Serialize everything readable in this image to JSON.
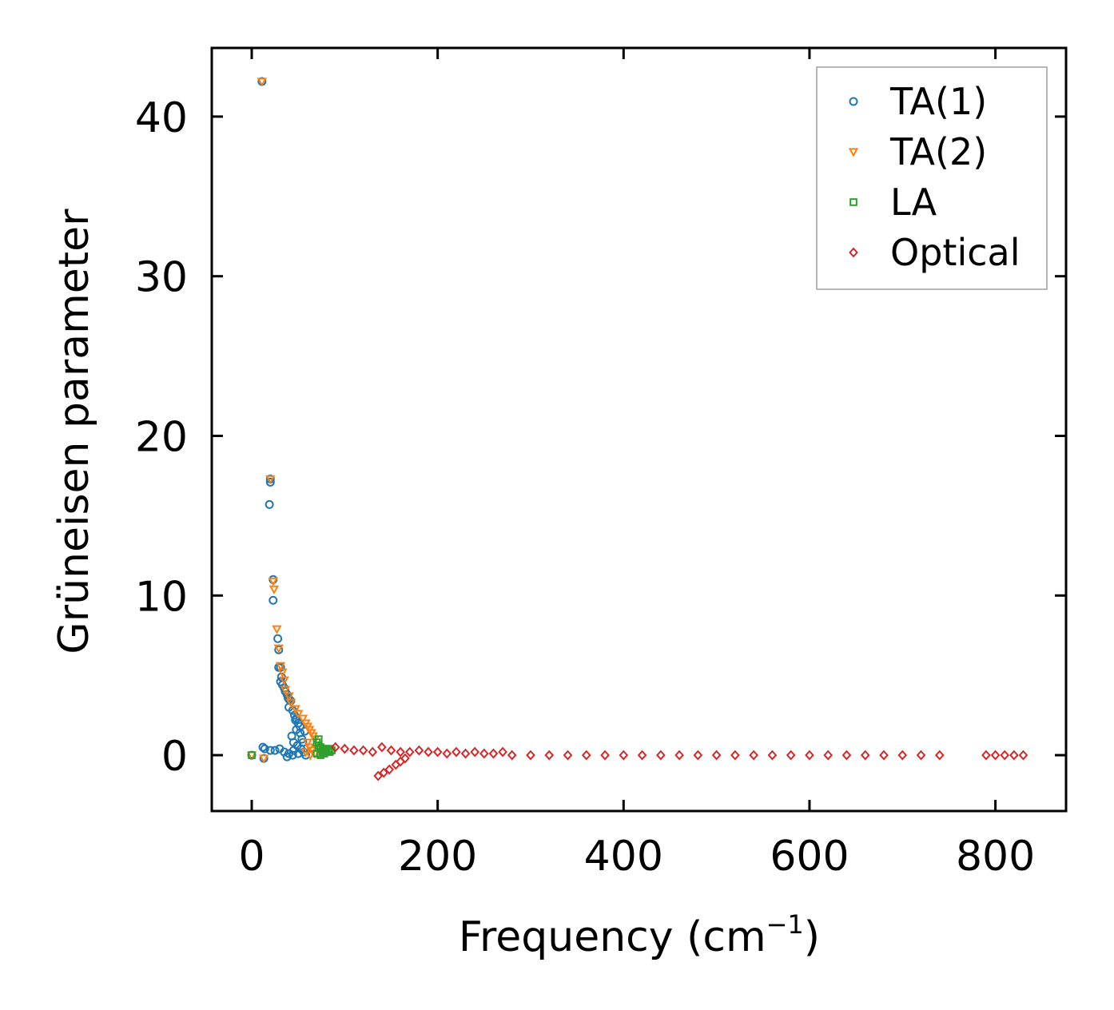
{
  "chart_data": {
    "type": "scatter",
    "title": "",
    "xlabel": "Frequency (cm",
    "xlabel_sup": "−1",
    "xlabel_end": ")",
    "ylabel": "Grüneisen parameter",
    "xlim": [
      -43,
      876
    ],
    "ylim": [
      -3.5,
      44.3
    ],
    "xticks": [
      0,
      200,
      400,
      600,
      800
    ],
    "yticks": [
      0,
      10,
      20,
      30,
      40
    ],
    "xtick_labels": [
      "0",
      "200",
      "400",
      "600",
      "800"
    ],
    "ytick_labels": [
      "0",
      "10",
      "20",
      "30",
      "40"
    ],
    "legend_position": "top-right",
    "series": [
      {
        "name": "TA(1)",
        "marker": "circle",
        "color": "#1f77b4",
        "points": [
          [
            0,
            0
          ],
          [
            11,
            42.2
          ],
          [
            20,
            17.3
          ],
          [
            20,
            17.1
          ],
          [
            19,
            15.7
          ],
          [
            23,
            11
          ],
          [
            23,
            9.7
          ],
          [
            28,
            7.3
          ],
          [
            29,
            6.6
          ],
          [
            29,
            5.5
          ],
          [
            31,
            5.5
          ],
          [
            32,
            4.9
          ],
          [
            31,
            4.6
          ],
          [
            33,
            4.4
          ],
          [
            35,
            4.2
          ],
          [
            36,
            4.0
          ],
          [
            38,
            3.8
          ],
          [
            39,
            3.6
          ],
          [
            40,
            3.5
          ],
          [
            42,
            3.4
          ],
          [
            40,
            3.0
          ],
          [
            44,
            2.8
          ],
          [
            46,
            2.5
          ],
          [
            47,
            2.2
          ],
          [
            50,
            2.0
          ],
          [
            48,
            1.6
          ],
          [
            52,
            1.4
          ],
          [
            54,
            1.0
          ],
          [
            45,
            0.8
          ],
          [
            49,
            0.6
          ],
          [
            53,
            0.4
          ],
          [
            56,
            0.2
          ],
          [
            58,
            0
          ],
          [
            12,
            0.5
          ],
          [
            14,
            0.4
          ],
          [
            13,
            -0.2
          ],
          [
            20,
            0.3
          ],
          [
            25,
            0.3
          ],
          [
            30,
            0.4
          ],
          [
            35,
            0.2
          ],
          [
            40,
            0.1
          ],
          [
            45,
            0.3
          ],
          [
            38,
            -0.1
          ],
          [
            44,
            0
          ],
          [
            50,
            0.1
          ],
          [
            55,
            0.8
          ],
          [
            57,
            1.5
          ],
          [
            52,
            1.8
          ],
          [
            48,
            2.3
          ],
          [
            43,
            1.2
          ]
        ]
      },
      {
        "name": "TA(2)",
        "marker": "triangle-down",
        "color": "#ff7f0e",
        "points": [
          [
            0,
            0
          ],
          [
            11,
            42.2
          ],
          [
            20,
            17.3
          ],
          [
            23,
            10.9
          ],
          [
            24,
            10.4
          ],
          [
            27,
            7.9
          ],
          [
            29,
            6.7
          ],
          [
            31,
            5.6
          ],
          [
            33,
            5.2
          ],
          [
            35,
            4.7
          ],
          [
            36,
            4.1
          ],
          [
            40,
            3.7
          ],
          [
            42,
            3.3
          ],
          [
            47,
            2.9
          ],
          [
            50,
            2.6
          ],
          [
            55,
            2.3
          ],
          [
            58,
            2.0
          ],
          [
            60,
            1.8
          ],
          [
            62,
            1.6
          ],
          [
            64,
            1.4
          ],
          [
            66,
            1.2
          ],
          [
            68,
            1.0
          ],
          [
            60,
            0.8
          ],
          [
            62,
            0.5
          ],
          [
            65,
            0.3
          ],
          [
            68,
            0.1
          ],
          [
            58,
            0.2
          ],
          [
            13,
            -0.2
          ],
          [
            70,
            0.4
          ],
          [
            63,
            0.0
          ]
        ]
      },
      {
        "name": "LA",
        "marker": "square",
        "color": "#2ca02c",
        "points": [
          [
            0,
            0
          ],
          [
            70,
            0.8
          ],
          [
            72,
            0.6
          ],
          [
            74,
            0.5
          ],
          [
            76,
            0.4
          ],
          [
            78,
            0.3
          ],
          [
            80,
            0.2
          ],
          [
            82,
            0.3
          ],
          [
            84,
            0.4
          ],
          [
            86,
            0.3
          ],
          [
            70,
            0.1
          ],
          [
            74,
            0
          ],
          [
            78,
            0.1
          ],
          [
            72,
            1.0
          ],
          [
            76,
            0.2
          ],
          [
            80,
            0.4
          ],
          [
            84,
            0.2
          ]
        ]
      },
      {
        "name": "Optical",
        "marker": "diamond",
        "color": "#d62728",
        "points": [
          [
            90,
            0.5
          ],
          [
            100,
            0.4
          ],
          [
            110,
            0.3
          ],
          [
            120,
            0.3
          ],
          [
            130,
            0.2
          ],
          [
            140,
            0.5
          ],
          [
            150,
            0.3
          ],
          [
            160,
            0.2
          ],
          [
            170,
            0.2
          ],
          [
            180,
            0.3
          ],
          [
            190,
            0.2
          ],
          [
            200,
            0.2
          ],
          [
            210,
            0.1
          ],
          [
            220,
            0.2
          ],
          [
            230,
            0.1
          ],
          [
            240,
            0.2
          ],
          [
            250,
            0.1
          ],
          [
            260,
            0.1
          ],
          [
            270,
            0.2
          ],
          [
            280,
            0
          ],
          [
            300,
            0
          ],
          [
            320,
            0
          ],
          [
            340,
            0
          ],
          [
            360,
            0
          ],
          [
            380,
            0
          ],
          [
            400,
            0
          ],
          [
            420,
            0
          ],
          [
            440,
            0
          ],
          [
            460,
            0
          ],
          [
            480,
            0
          ],
          [
            500,
            0
          ],
          [
            520,
            0
          ],
          [
            540,
            0
          ],
          [
            560,
            0
          ],
          [
            580,
            0
          ],
          [
            600,
            0
          ],
          [
            620,
            0
          ],
          [
            640,
            0
          ],
          [
            660,
            0
          ],
          [
            680,
            0
          ],
          [
            700,
            0
          ],
          [
            720,
            0
          ],
          [
            740,
            0
          ],
          [
            790,
            0
          ],
          [
            800,
            0
          ],
          [
            810,
            0
          ],
          [
            820,
            0
          ],
          [
            830,
            0
          ],
          [
            136,
            -1.3
          ],
          [
            142,
            -1.1
          ],
          [
            148,
            -0.9
          ],
          [
            155,
            -0.6
          ],
          [
            160,
            -0.4
          ],
          [
            165,
            -0.2
          ]
        ]
      }
    ]
  }
}
